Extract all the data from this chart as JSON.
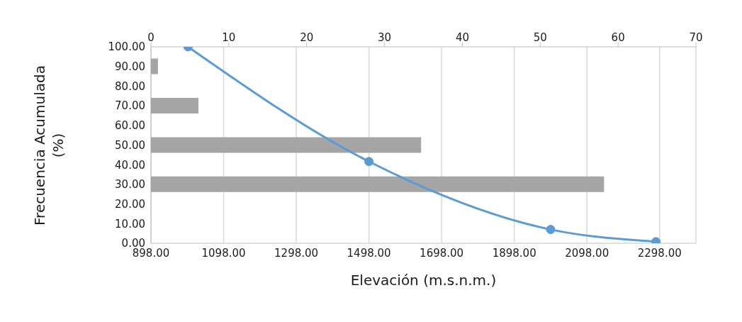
{
  "chart_data": [
    {
      "type": "line",
      "xlabel": "Elevación (m.s.n.m.)",
      "ylabel": "Frecuencia Acumulada (%)",
      "xlim": [
        898,
        2398
      ],
      "xticks": [
        {
          "value": 898,
          "label": "898.00"
        },
        {
          "value": 1098,
          "label": "1098.00"
        },
        {
          "value": 1298,
          "label": "1298.00"
        },
        {
          "value": 1498,
          "label": "1498.00"
        },
        {
          "value": 1698,
          "label": "1698.00"
        },
        {
          "value": 1898,
          "label": "1898.00"
        },
        {
          "value": 2098,
          "label": "2098.00"
        },
        {
          "value": 2298,
          "label": "2298.00"
        }
      ],
      "ylim": [
        0,
        100
      ],
      "yticks": [
        {
          "value": 0,
          "label": "0.00"
        },
        {
          "value": 10,
          "label": "10.00"
        },
        {
          "value": 20,
          "label": "20.00"
        },
        {
          "value": 30,
          "label": "30.00"
        },
        {
          "value": 40,
          "label": "40.00"
        },
        {
          "value": 50,
          "label": "50.00"
        },
        {
          "value": 60,
          "label": "60.00"
        },
        {
          "value": 70,
          "label": "70.00"
        },
        {
          "value": 80,
          "label": "80.00"
        },
        {
          "value": 90,
          "label": "90.00"
        },
        {
          "value": 100,
          "label": "100.00"
        }
      ],
      "grid": "x",
      "marker": "circle",
      "line_style": "solid",
      "color": "#5b9bd5",
      "x": [
        1000,
        1498,
        1998,
        2288
      ],
      "values": [
        100,
        41.6,
        7.0,
        0.8
      ]
    },
    {
      "type": "bar",
      "orientation": "horizontal",
      "categories": [
        null,
        null,
        null,
        null
      ],
      "values": [
        0.9,
        6.1,
        34.7,
        58.2
      ],
      "color": "#a5a5a5",
      "xlim": [
        0,
        70
      ],
      "xticks": [
        0,
        10,
        20,
        30,
        40,
        50,
        60,
        70
      ],
      "tick_labels": "x"
    }
  ]
}
